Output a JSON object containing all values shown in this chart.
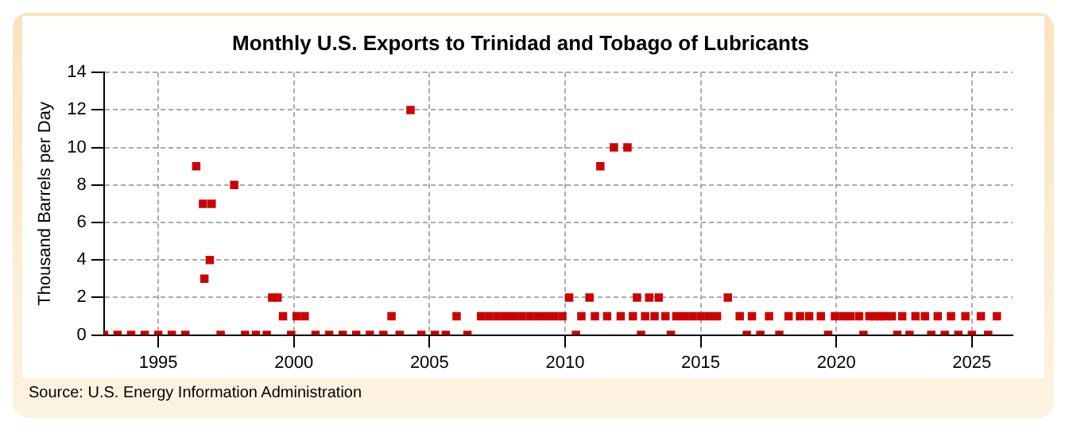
{
  "chart_data": {
    "type": "scatter",
    "title": "Monthly U.S. Exports to Trinidad and Tobago of Lubricants",
    "ylabel": "Thousand Barrels per Day",
    "annotations": [
      "Source: U.S. Energy Information Administration"
    ],
    "x": [
      1993.0,
      1993.5,
      1994.0,
      1994.5,
      1995.0,
      1995.5,
      1996.0,
      1996.4,
      1996.65,
      1996.7,
      1996.9,
      1996.97,
      1997.3,
      1997.8,
      1998.2,
      1998.6,
      1999.0,
      1999.2,
      1999.4,
      1999.6,
      1999.9,
      2000.1,
      2000.4,
      2000.8,
      2001.3,
      2001.8,
      2002.3,
      2002.8,
      2003.3,
      2003.6,
      2003.9,
      2004.3,
      2004.7,
      2005.2,
      2005.6,
      2006.0,
      2006.4,
      2006.9,
      2007.2,
      2007.5,
      2007.8,
      2008.1,
      2008.4,
      2008.7,
      2009.0,
      2009.3,
      2009.6,
      2009.9,
      2010.15,
      2010.4,
      2010.6,
      2010.9,
      2011.1,
      2011.3,
      2011.55,
      2011.8,
      2012.05,
      2012.3,
      2012.5,
      2012.65,
      2012.8,
      2012.95,
      2013.1,
      2013.3,
      2013.45,
      2013.7,
      2013.9,
      2014.1,
      2014.4,
      2014.7,
      2015.0,
      2015.3,
      2015.6,
      2016.0,
      2016.44,
      2016.7,
      2016.89,
      2017.2,
      2017.52,
      2017.9,
      2018.24,
      2018.66,
      2019.0,
      2019.43,
      2019.7,
      2019.95,
      2020.25,
      2020.52,
      2020.84,
      2021.0,
      2021.22,
      2021.41,
      2021.6,
      2021.79,
      2022.05,
      2022.25,
      2022.43,
      2022.7,
      2022.92,
      2023.27,
      2023.5,
      2023.74,
      2024.0,
      2024.23,
      2024.5,
      2024.76,
      2025.0,
      2025.33,
      2025.6,
      2025.92
    ],
    "values": [
      0,
      0,
      0,
      0,
      0,
      0,
      0,
      9,
      7,
      3,
      4,
      7,
      0,
      8,
      0,
      0,
      0,
      2,
      2,
      1,
      0,
      1,
      1,
      0,
      0,
      0,
      0,
      0,
      0,
      1,
      0,
      12,
      0,
      0,
      0,
      1,
      0,
      1,
      1,
      1,
      1,
      1,
      1,
      1,
      1,
      1,
      1,
      1,
      2,
      0,
      1,
      2,
      1,
      9,
      1,
      10,
      1,
      10,
      1,
      2,
      0,
      1,
      2,
      1,
      2,
      1,
      0,
      1,
      1,
      1,
      1,
      1,
      1,
      2,
      1,
      0,
      1,
      0,
      1,
      0,
      1,
      1,
      1,
      1,
      0,
      1,
      1,
      1,
      1,
      0,
      1,
      1,
      1,
      1,
      1,
      0,
      1,
      0,
      1,
      1,
      0,
      1,
      0,
      1,
      0,
      1,
      0,
      1,
      0,
      1
    ],
    "color": "#cc0000",
    "marker": "square",
    "xlim": [
      1993,
      2026.5
    ],
    "xticks": [
      1995,
      2000,
      2005,
      2010,
      2015,
      2020,
      2025
    ],
    "ylim": [
      0,
      14
    ],
    "yticks": [
      0,
      2,
      4,
      6,
      8,
      10,
      12,
      14
    ],
    "grid": true,
    "legend": false
  }
}
